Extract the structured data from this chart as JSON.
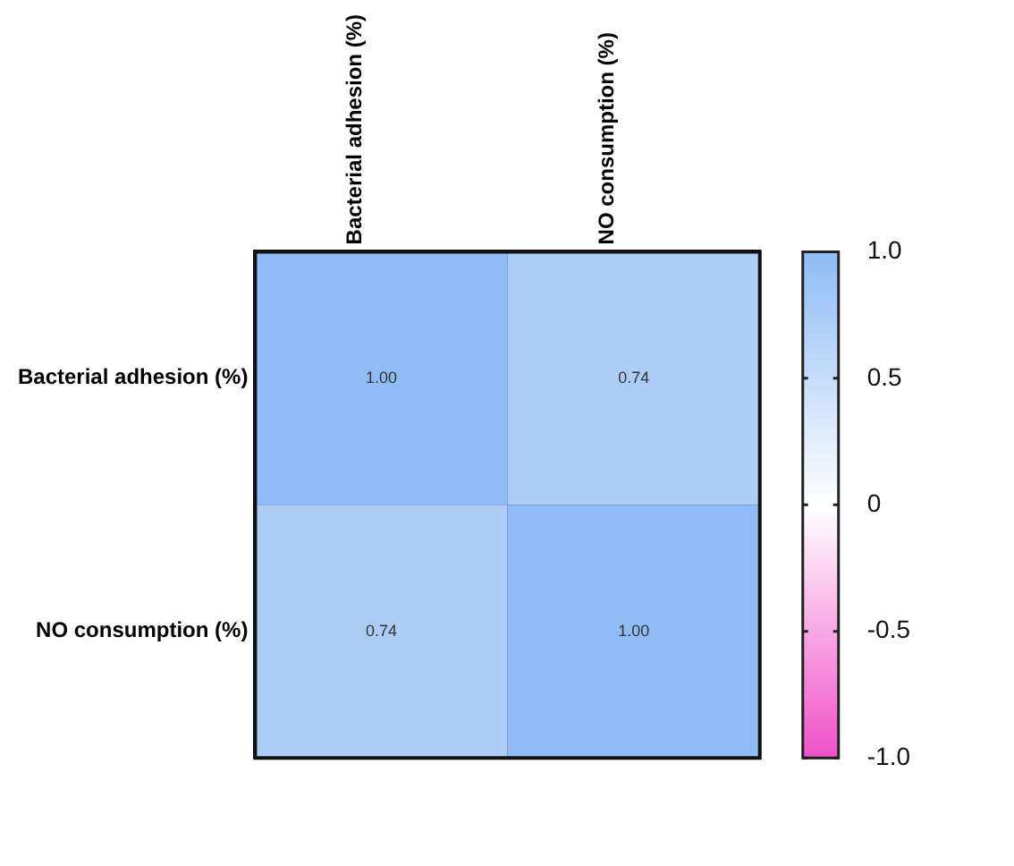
{
  "chart_data": {
    "type": "heatmap",
    "categories": [
      "Bacterial adhesion (%)",
      "NO consumption (%)"
    ],
    "y_categories": [
      "Bacterial adhesion (%)",
      "NO consumption (%)"
    ],
    "cells": [
      [
        1.0,
        0.74
      ],
      [
        0.74,
        1.0
      ]
    ],
    "cell_labels": [
      [
        "1.00",
        "0.74"
      ],
      [
        "0.74",
        "1.00"
      ]
    ],
    "clim": [
      -1,
      1
    ],
    "cticks": [
      {
        "value": 1,
        "label": "1.0"
      },
      {
        "value": 0.5,
        "label": "0.5"
      },
      {
        "value": 0,
        "label": "0"
      },
      {
        "value": -0.5,
        "label": "-0.5"
      },
      {
        "value": -1,
        "label": "-1.0"
      }
    ]
  }
}
